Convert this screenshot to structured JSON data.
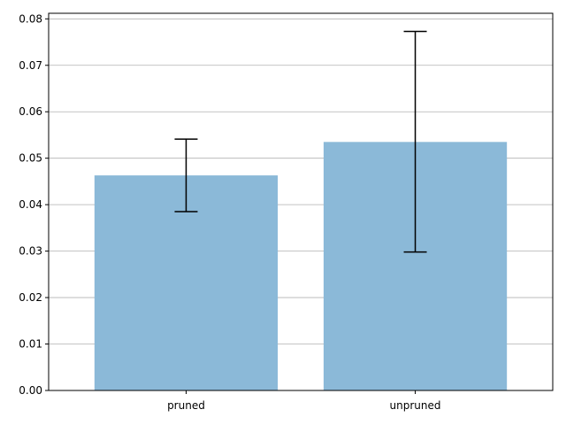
{
  "chart_data": {
    "type": "bar",
    "categories": [
      "pruned",
      "unpruned"
    ],
    "values": [
      0.0463,
      0.0535
    ],
    "error_bars": [
      {
        "category": "pruned",
        "low": 0.0385,
        "high": 0.0541
      },
      {
        "category": "unpruned",
        "low": 0.0298,
        "high": 0.0773
      }
    ],
    "yticks": [
      "0.00",
      "0.01",
      "0.02",
      "0.03",
      "0.04",
      "0.05",
      "0.06",
      "0.07",
      "0.08"
    ],
    "ylim": [
      0,
      0.0812
    ],
    "grid": "horizontal",
    "bar_color": "#8bb9d8",
    "error_color": "#000000",
    "title": "",
    "xlabel": "",
    "ylabel": ""
  }
}
